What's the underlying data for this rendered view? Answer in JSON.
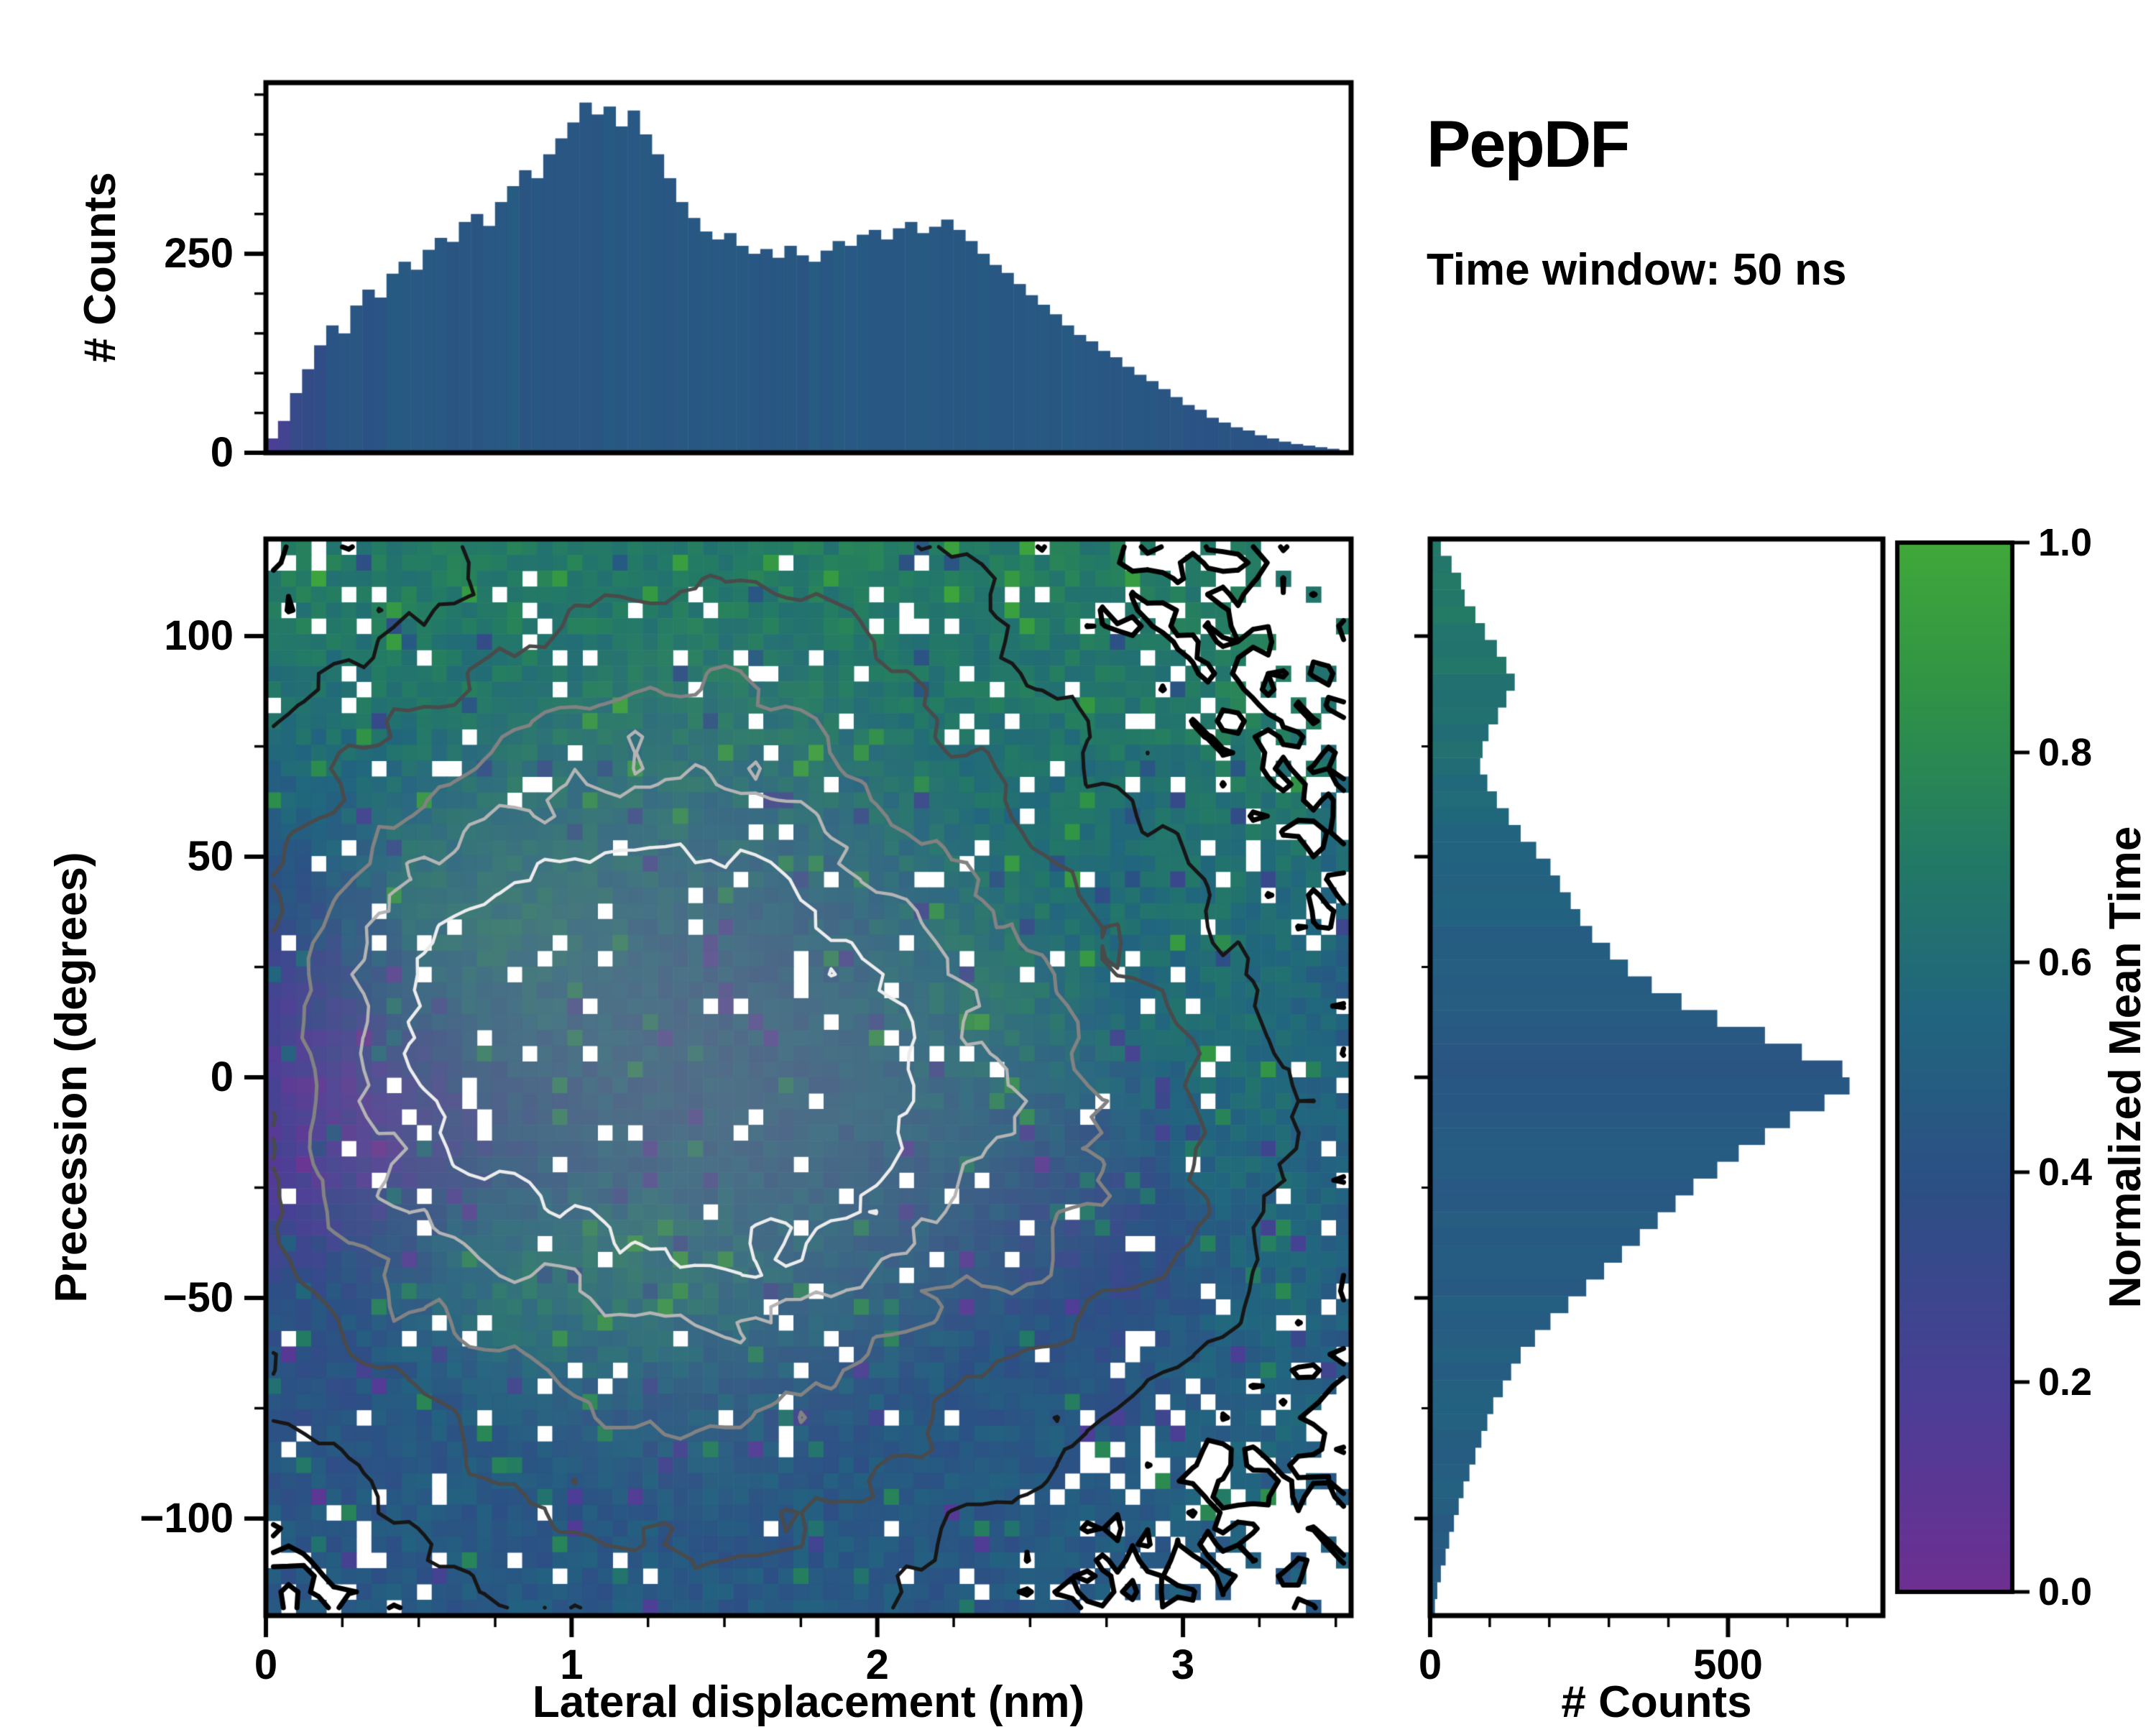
{
  "header": {
    "title": "PepDF",
    "subtitle": "Time window: 50 ns"
  },
  "colors": {
    "background": "#ffffff",
    "axes": "#000000",
    "colormap_stops": [
      [
        0.0,
        "#6e2f92"
      ],
      [
        0.18,
        "#4c3e96"
      ],
      [
        0.38,
        "#2d4f85"
      ],
      [
        0.55,
        "#21657f"
      ],
      [
        0.7,
        "#237a65"
      ],
      [
        0.85,
        "#2f9247"
      ],
      [
        1.0,
        "#41a83a"
      ]
    ]
  },
  "chart_data": {
    "top_histogram": {
      "type": "bar",
      "ylabel": "# Counts",
      "x_range": [
        0,
        3.55
      ],
      "ylim": [
        0,
        465
      ],
      "yticks": [
        0,
        250
      ],
      "n_bins": 90,
      "values": [
        18,
        40,
        75,
        105,
        135,
        160,
        150,
        185,
        205,
        195,
        225,
        240,
        230,
        255,
        270,
        265,
        290,
        300,
        285,
        315,
        335,
        355,
        345,
        375,
        395,
        415,
        440,
        425,
        435,
        410,
        430,
        400,
        375,
        345,
        315,
        295,
        278,
        268,
        276,
        260,
        250,
        256,
        245,
        260,
        248,
        240,
        254,
        266,
        260,
        274,
        280,
        268,
        282,
        290,
        276,
        284,
        293,
        280,
        266,
        250,
        236,
        226,
        212,
        198,
        186,
        174,
        160,
        148,
        140,
        128,
        120,
        108,
        98,
        90,
        80,
        70,
        60,
        54,
        44,
        38,
        32,
        28,
        22,
        18,
        14,
        11,
        9,
        7,
        5,
        3
      ],
      "color_profile": [
        [
          0,
          0.16
        ],
        [
          0.07,
          0.28
        ],
        [
          0.2,
          0.4
        ],
        [
          0.45,
          0.45
        ],
        [
          2.6,
          0.45
        ],
        [
          3.1,
          0.43
        ],
        [
          3.55,
          0.4
        ]
      ]
    },
    "joint_heatmap": {
      "type": "heatmap",
      "xlabel": "Lateral displacement (nm)",
      "ylabel": "Precession (degrees)",
      "x_range": [
        0,
        3.55
      ],
      "y_range": [
        -122,
        122
      ],
      "xticks": [
        0,
        1,
        2,
        3
      ],
      "yticks": [
        -100,
        -50,
        0,
        50,
        100
      ],
      "grid": [
        72,
        68
      ],
      "seed": 1337,
      "density_blobs": [
        [
          1.05,
          5,
          0.75,
          50,
          1.0
        ],
        [
          2.0,
          -10,
          0.75,
          48,
          0.85
        ],
        [
          1.6,
          70,
          0.85,
          40,
          0.5
        ],
        [
          1.5,
          115,
          0.7,
          30,
          0.3
        ],
        [
          1.2,
          -80,
          0.75,
          38,
          0.45
        ],
        [
          1.6,
          -115,
          0.6,
          25,
          0.25
        ],
        [
          2.9,
          -20,
          0.5,
          45,
          0.35
        ],
        [
          0.4,
          40,
          0.5,
          40,
          0.35
        ],
        [
          0.3,
          -30,
          0.4,
          40,
          0.3
        ]
      ],
      "occupancy": {
        "noise": 0.32,
        "threshold": 0.14,
        "hole_prob": 0.05
      },
      "mean_time": {
        "base": 0.45,
        "top_ramp": [
          25,
          85,
          0.22
        ],
        "top_extra": [
          100,
          0.03
        ],
        "patches": [
          [
            0.55,
            25,
            0.4,
            22,
            0.22
          ],
          [
            0.95,
            -45,
            0.55,
            16,
            0.2
          ],
          [
            2.45,
            20,
            0.35,
            22,
            0.18
          ],
          [
            3.2,
            -15,
            0.25,
            60,
            0.15
          ],
          [
            0.12,
            0,
            0.3,
            40,
            -0.3
          ],
          [
            0.55,
            -8,
            0.3,
            22,
            -0.15
          ],
          [
            2.85,
            -38,
            0.3,
            22,
            -0.14
          ]
        ],
        "noise": 0.07,
        "speckle_prob": 0.06,
        "speckle_amp": 0.26
      },
      "contours": {
        "outer": [
          0.14,
          "#000000",
          7
        ],
        "inner": [
          [
            0.42,
            "#161616",
            5
          ],
          [
            0.7,
            "#4a4a4a",
            5
          ],
          [
            0.95,
            "#828282",
            5
          ],
          [
            1.18,
            "#b4b4b4",
            4.5
          ],
          [
            1.38,
            "#ececec",
            4.5
          ]
        ],
        "noise": 0.2
      }
    },
    "right_histogram": {
      "type": "bar",
      "xlabel": "# Counts",
      "y_range": [
        -122,
        122
      ],
      "xlim": [
        0,
        760
      ],
      "xticks": [
        0,
        500
      ],
      "n_bins": 64,
      "values_top_to_bottom": [
        18,
        36,
        52,
        58,
        76,
        92,
        112,
        128,
        142,
        128,
        114,
        98,
        88,
        84,
        96,
        112,
        132,
        152,
        178,
        202,
        218,
        236,
        252,
        272,
        302,
        332,
        372,
        422,
        482,
        562,
        624,
        692,
        704,
        662,
        604,
        562,
        518,
        482,
        442,
        412,
        382,
        352,
        322,
        292,
        262,
        232,
        202,
        176,
        152,
        136,
        122,
        106,
        96,
        86,
        76,
        66,
        56,
        48,
        40,
        32,
        26,
        18,
        12,
        8
      ],
      "color_profile": [
        [
          -122,
          0.47
        ],
        [
          -70,
          0.5
        ],
        [
          -30,
          0.47
        ],
        [
          5,
          0.45
        ],
        [
          35,
          0.5
        ],
        [
          55,
          0.56
        ],
        [
          75,
          0.62
        ],
        [
          95,
          0.67
        ],
        [
          122,
          0.68
        ]
      ]
    },
    "colorbar": {
      "label": "Normalized Mean Time",
      "ticks": [
        0.0,
        0.2,
        0.4,
        0.6,
        0.8,
        1.0
      ],
      "range": [
        0,
        1
      ]
    }
  }
}
